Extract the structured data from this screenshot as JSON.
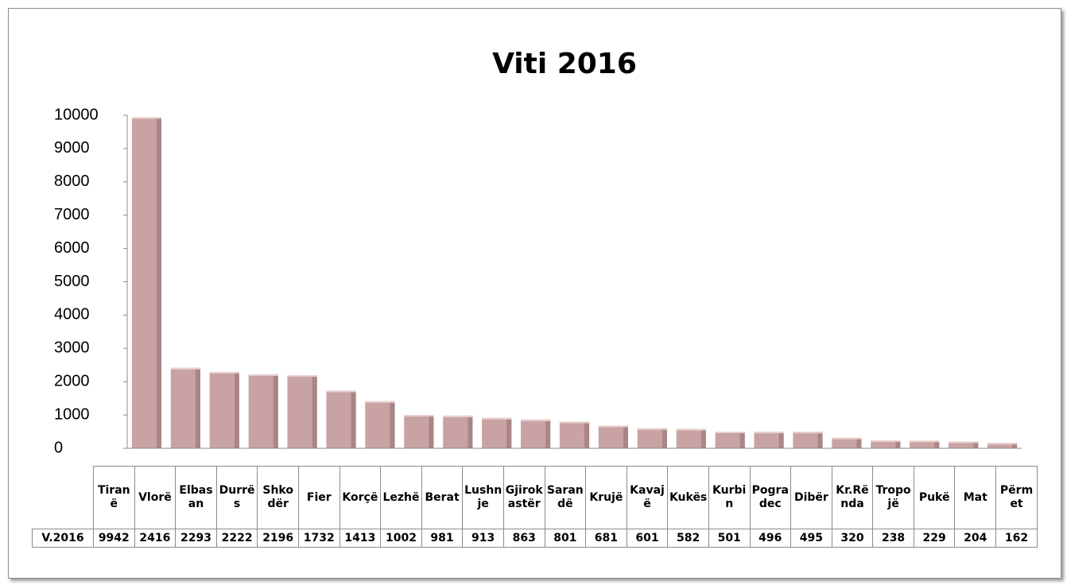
{
  "chart_data": {
    "type": "bar",
    "title": "Viti 2016",
    "categories": [
      "Tiranë",
      "Vlorë",
      "Elbasan",
      "Durrës",
      "Shkodër",
      "Fier",
      "Korçë",
      "Lezhë",
      "Berat",
      "Lushnje",
      "Gjirokastër",
      "Sarandë",
      "Krujë",
      "Kavajë",
      "Kukës",
      "Kurbin",
      "Pogradec",
      "Dibër",
      "Kr.Rënda",
      "Tropojë",
      "Pukë",
      "Mat",
      "Përmet"
    ],
    "series": [
      {
        "name": "V.2016",
        "color": "#c9a3a3",
        "values": [
          9942,
          2416,
          2293,
          2222,
          2196,
          1732,
          1413,
          1002,
          981,
          913,
          863,
          801,
          681,
          601,
          582,
          501,
          496,
          495,
          320,
          238,
          229,
          204,
          162
        ]
      }
    ],
    "ylim": [
      0,
      10000
    ],
    "yticks": [
      0,
      1000,
      2000,
      3000,
      4000,
      5000,
      6000,
      7000,
      8000,
      9000,
      10000
    ],
    "data_table": true
  }
}
